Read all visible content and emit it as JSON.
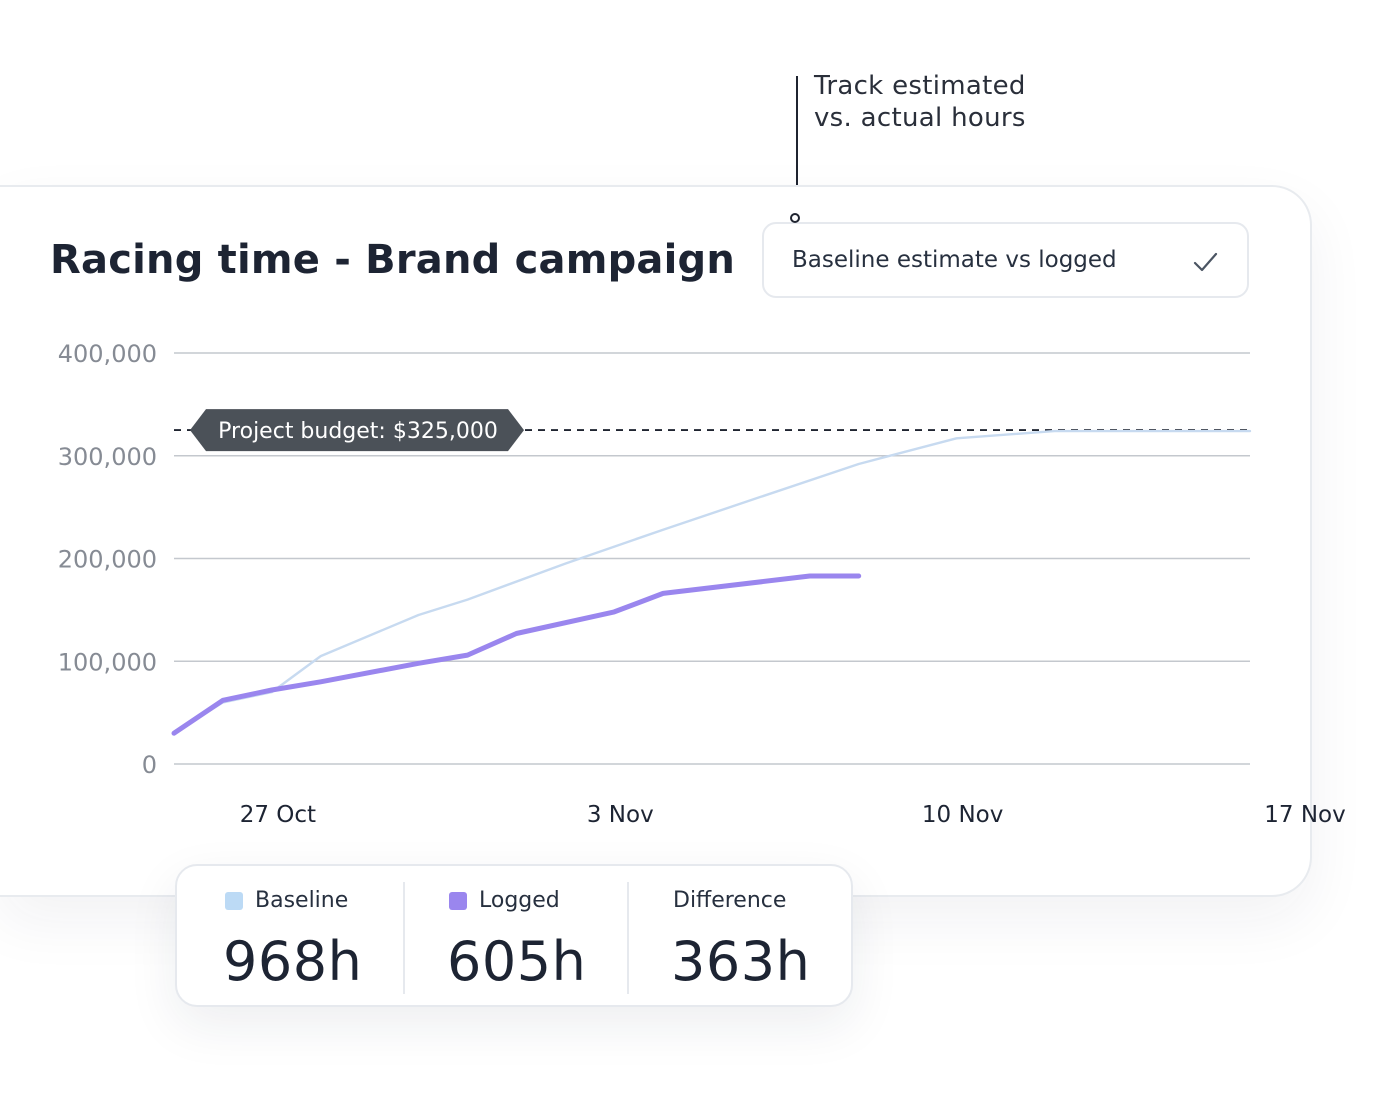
{
  "callout": {
    "line1": "Track estimated",
    "line2": "vs. actual hours"
  },
  "card": {
    "title": "Racing time - Brand campaign",
    "selector": {
      "label": "Baseline estimate vs logged",
      "icon": "check-icon"
    }
  },
  "chart_data": {
    "type": "line",
    "title": "Racing time - Brand campaign",
    "xlabel": "",
    "ylabel": "",
    "x_axis": "date",
    "y_ticks": [
      "400,000",
      "300,000",
      "200,000",
      "100,000",
      "0"
    ],
    "y_tick_values": [
      400000,
      300000,
      200000,
      100000,
      0
    ],
    "x_ticks": [
      "27 Oct",
      "3 Nov",
      "10 Nov",
      "17 Nov"
    ],
    "x_tick_values": [
      "2023-10-27",
      "2023-11-03",
      "2023-11-10",
      "2023-11-17"
    ],
    "ylim": [
      0,
      400000
    ],
    "xlim": [
      "2023-10-26",
      "2023-11-17"
    ],
    "grid": true,
    "reference_line": {
      "label": "Project budget: $325,000",
      "value": 325000,
      "style": "dashed"
    },
    "series": [
      {
        "name": "Baseline",
        "color": "#c7daf0",
        "points": [
          [
            "2023-10-26",
            30000
          ],
          [
            "2023-10-27",
            60000
          ],
          [
            "2023-10-28",
            70000
          ],
          [
            "2023-10-29",
            105000
          ],
          [
            "2023-10-31",
            145000
          ],
          [
            "2023-11-01",
            160000
          ],
          [
            "2023-11-03",
            195000
          ],
          [
            "2023-11-05",
            228000
          ],
          [
            "2023-11-07",
            260000
          ],
          [
            "2023-11-09",
            292000
          ],
          [
            "2023-11-11",
            317000
          ],
          [
            "2023-11-13",
            324000
          ],
          [
            "2023-11-17",
            324000
          ]
        ]
      },
      {
        "name": "Logged",
        "color": "#9a86ee",
        "points": [
          [
            "2023-10-26",
            30000
          ],
          [
            "2023-10-27",
            62000
          ],
          [
            "2023-10-28",
            72000
          ],
          [
            "2023-10-29",
            80000
          ],
          [
            "2023-10-31",
            98000
          ],
          [
            "2023-11-01",
            106000
          ],
          [
            "2023-11-02",
            127000
          ],
          [
            "2023-11-04",
            148000
          ],
          [
            "2023-11-05",
            166000
          ],
          [
            "2023-11-08",
            183000
          ],
          [
            "2023-11-09",
            183000
          ]
        ]
      }
    ]
  },
  "stats": [
    {
      "label": "Baseline",
      "value": "968h",
      "color": "#bcdaf5"
    },
    {
      "label": "Logged",
      "value": "605h",
      "color": "#9a86ee"
    },
    {
      "label": "Difference",
      "value": "363h",
      "color": ""
    }
  ]
}
